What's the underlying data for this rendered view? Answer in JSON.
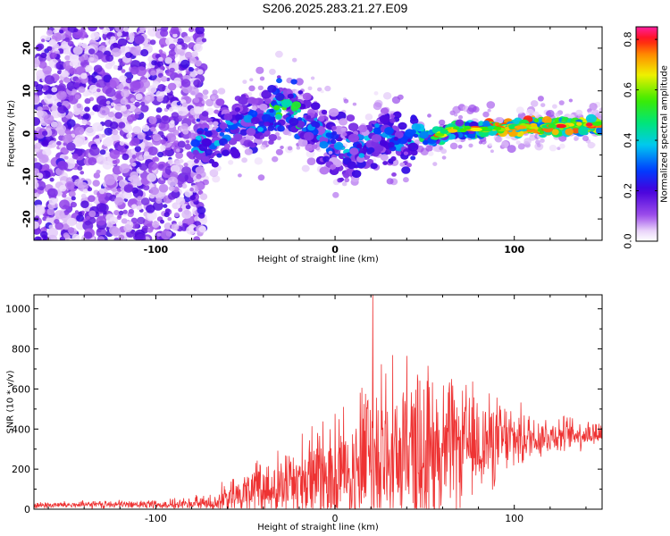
{
  "chart_data": [
    {
      "type": "heatmap",
      "title": "S206.2025.283.21.27.E09",
      "xlabel": "Height of straight line (km)",
      "ylabel": "Frequency (Hz)",
      "xlim": [
        -168,
        149
      ],
      "ylim": [
        -25,
        25
      ],
      "xticks": [
        -100,
        0,
        100
      ],
      "yticks": [
        -20,
        -10,
        0,
        10,
        20
      ],
      "colorbar": {
        "label": "Normalized spectral amplitude",
        "range": [
          0.0,
          0.85
        ],
        "ticks": [
          "0.0",
          "0.2",
          "0.4",
          "0.6",
          "0.8"
        ]
      },
      "ridge_frequency_points": [
        {
          "x": -75,
          "y": -2
        },
        {
          "x": -55,
          "y": 2
        },
        {
          "x": -40,
          "y": 3
        },
        {
          "x": -28,
          "y": 7
        },
        {
          "x": -15,
          "y": 2
        },
        {
          "x": -5,
          "y": -1
        },
        {
          "x": 5,
          "y": -4
        },
        {
          "x": 15,
          "y": -3
        },
        {
          "x": 25,
          "y": 0
        },
        {
          "x": 35,
          "y": -3
        },
        {
          "x": 45,
          "y": 0
        },
        {
          "x": 55,
          "y": -1
        },
        {
          "x": 65,
          "y": 1
        },
        {
          "x": 80,
          "y": 1
        },
        {
          "x": 100,
          "y": 1.5
        },
        {
          "x": 120,
          "y": 2
        },
        {
          "x": 149,
          "y": 2
        }
      ]
    },
    {
      "type": "line",
      "xlabel": "Height of straight line (km)",
      "ylabel": "SNR (10 * v/v)",
      "xlim": [
        -168,
        149
      ],
      "ylim": [
        0,
        1070
      ],
      "xticks": [
        -100,
        0,
        100
      ],
      "yticks": [
        0,
        200,
        400,
        600,
        800,
        1000
      ],
      "color": "#ee3333",
      "envelope_points": [
        {
          "x": -168,
          "base": 20,
          "amp": 20
        },
        {
          "x": -90,
          "base": 25,
          "amp": 30
        },
        {
          "x": -70,
          "base": 30,
          "amp": 60
        },
        {
          "x": -50,
          "base": 80,
          "amp": 150
        },
        {
          "x": -30,
          "base": 120,
          "amp": 220
        },
        {
          "x": -10,
          "base": 170,
          "amp": 300
        },
        {
          "x": 10,
          "base": 220,
          "amp": 420
        },
        {
          "x": 20,
          "base": 250,
          "amp": 600
        },
        {
          "x": 40,
          "base": 280,
          "amp": 550
        },
        {
          "x": 60,
          "base": 300,
          "amp": 450
        },
        {
          "x": 80,
          "base": 330,
          "amp": 330
        },
        {
          "x": 100,
          "base": 350,
          "amp": 200
        },
        {
          "x": 120,
          "base": 370,
          "amp": 120
        },
        {
          "x": 149,
          "base": 380,
          "amp": 80
        }
      ],
      "peak": {
        "x": 21,
        "y": 1070
      }
    }
  ]
}
